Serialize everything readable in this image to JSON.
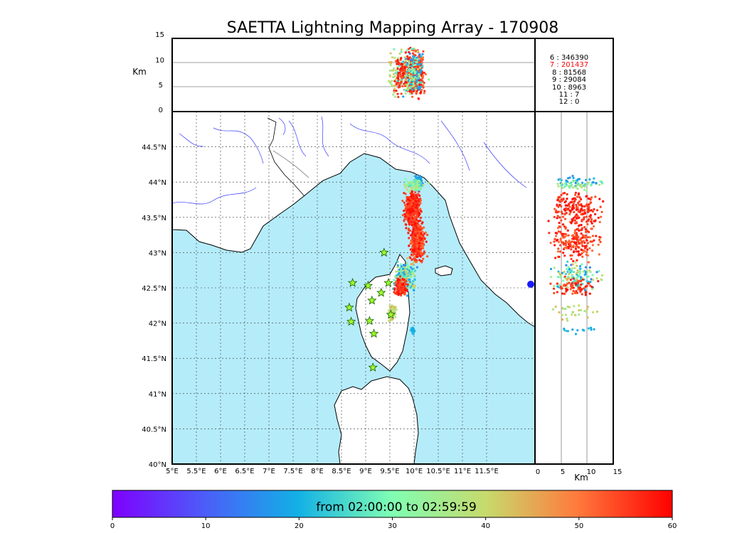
{
  "chart_data": {
    "type": "scatter",
    "title": "SAETTA Lightning Mapping Array - 170908",
    "map": {
      "xlim": [
        5,
        12.5
      ],
      "ylim": [
        40,
        45
      ],
      "xticks": [
        "5°E",
        "5.5°E",
        "6°E",
        "6.5°E",
        "7°E",
        "7.5°E",
        "8°E",
        "8.5°E",
        "9°E",
        "9.5°E",
        "10°E",
        "10.5°E",
        "11°E",
        "11.5°E"
      ],
      "yticks": [
        "40°N",
        "40.5°N",
        "41°N",
        "41.5°N",
        "42°N",
        "42.5°N",
        "43°N",
        "43.5°N",
        "44°N",
        "44.5°N"
      ],
      "stations": [
        [
          9.38,
          43.0
        ],
        [
          8.73,
          42.57
        ],
        [
          9.05,
          42.53
        ],
        [
          9.47,
          42.57
        ],
        [
          9.32,
          42.43
        ],
        [
          9.13,
          42.32
        ],
        [
          8.66,
          42.22
        ],
        [
          8.7,
          42.02
        ],
        [
          9.08,
          42.03
        ],
        [
          9.52,
          42.12
        ],
        [
          9.17,
          41.85
        ],
        [
          9.15,
          41.37
        ]
      ]
    },
    "alt_top": {
      "ylabel": "Km",
      "yticks": [
        "0",
        "5",
        "10",
        "15"
      ],
      "ylim": [
        0,
        15
      ]
    },
    "alt_side": {
      "xlabel": "Km",
      "xticks": [
        "0",
        "5",
        "10",
        "15"
      ],
      "xlim": [
        0,
        15
      ]
    },
    "counts": [
      {
        "label": "6 :   346390",
        "color": "#000000"
      },
      {
        "label": "7 :   201437",
        "color": "#ff0000"
      },
      {
        "label": "8 :     81568",
        "color": "#000000"
      },
      {
        "label": "9 :     29084",
        "color": "#000000"
      },
      {
        "label": "10 :      8963",
        "color": "#000000"
      },
      {
        "label": "11 :         7",
        "color": "#000000"
      },
      {
        "label": "12 :         0",
        "color": "#000000"
      }
    ],
    "colorbar": {
      "label": "from 02:00:00 to 02:59:59",
      "ticks": [
        "0",
        "10",
        "20",
        "30",
        "40",
        "50",
        "60"
      ],
      "range": [
        0,
        60
      ]
    },
    "clusters": [
      {
        "lon": 9.97,
        "lat": 43.62,
        "slon": 0.08,
        "slat": 0.13,
        "n": 420,
        "t": [
          52,
          60
        ]
      },
      {
        "lon": 10.07,
        "lat": 43.15,
        "slon": 0.07,
        "slat": 0.12,
        "n": 380,
        "t": [
          50,
          60
        ]
      },
      {
        "lon": 9.82,
        "lat": 42.65,
        "slon": 0.1,
        "slat": 0.1,
        "n": 260,
        "t": [
          14,
          45
        ]
      },
      {
        "lon": 9.72,
        "lat": 42.52,
        "slon": 0.06,
        "slat": 0.06,
        "n": 140,
        "t": [
          52,
          60
        ]
      },
      {
        "lon": 10.1,
        "lat": 44.02,
        "slon": 0.04,
        "slat": 0.05,
        "n": 60,
        "t": [
          14,
          22
        ]
      },
      {
        "lon": 9.97,
        "lat": 41.9,
        "slon": 0.02,
        "slat": 0.02,
        "n": 25,
        "t": [
          18,
          22
        ]
      },
      {
        "lon": 9.55,
        "lat": 42.15,
        "slon": 0.04,
        "slat": 0.05,
        "n": 60,
        "t": [
          34,
          46
        ]
      },
      {
        "lon": 10.0,
        "lat": 43.95,
        "slon": 0.1,
        "slat": 0.04,
        "n": 90,
        "t": [
          25,
          40
        ]
      }
    ]
  }
}
